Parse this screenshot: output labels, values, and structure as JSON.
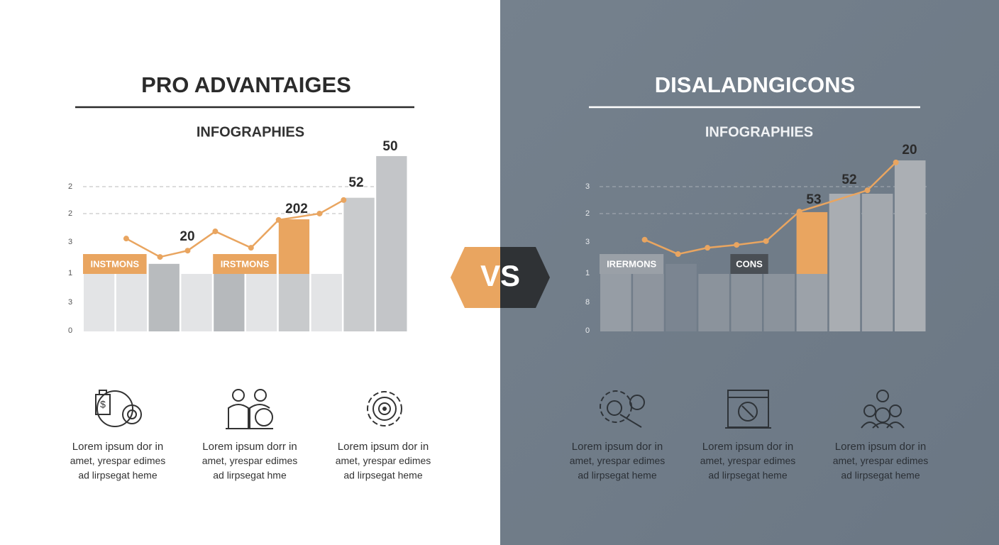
{
  "panels": [
    {
      "title": "PRO ADVANTAIGES",
      "subtitle": "INFOGRAPHIES",
      "axis_labels": [
        "2",
        "2",
        "3",
        "1",
        "3",
        "0"
      ],
      "bars": [
        {
          "value": 2.0,
          "color": "#e3e4e6"
        },
        {
          "value": 2.0,
          "color": "#e3e4e6"
        },
        {
          "value": 2.35,
          "color": "#b8bbbe"
        },
        {
          "value": 2.0,
          "color": "#e3e4e6"
        },
        {
          "value": 2.0,
          "color": "#b6b9bc"
        },
        {
          "value": 2.0,
          "color": "#e3e4e6"
        },
        {
          "value": 2.0,
          "color": "#c8cacc",
          "highlight": 1.9,
          "highlight_color": "#e9a560"
        },
        {
          "value": 2.0,
          "color": "#e3e4e6"
        },
        {
          "value": 4.65,
          "color": "#c9cbcd"
        },
        {
          "value": 6.1,
          "color": "#c3c5c8"
        }
      ],
      "line": {
        "color": "#e9a560",
        "x": [
          1.33,
          2.37,
          3.22,
          4.07,
          5.17,
          6.02,
          7.28,
          8.02
        ],
        "values": [
          3.23,
          2.59,
          2.81,
          3.48,
          2.91,
          3.88,
          4.1,
          4.57
        ]
      },
      "tags": [
        "INSTMONS",
        "IRSTMONS"
      ],
      "callouts": [
        "20",
        "202",
        "52",
        "50"
      ],
      "items": [
        [
          "Lorem ipsum dor in",
          "amet, yrespar edimes",
          "ad lirpsegat heme"
        ],
        [
          "Lorem ipsum dorr in",
          "amet, yrespar edimes",
          "ad lirpsegat hme"
        ],
        [
          "Lorem ipsum dor in",
          "amet, yrespar edimes",
          "ad lirpsegat heme"
        ]
      ]
    },
    {
      "title": "DISALADNGICONS",
      "subtitle": "INFOGRAPHIES",
      "axis_labels": [
        "3",
        "2",
        "3",
        "1",
        "8",
        "0"
      ],
      "bars": [
        {
          "value": 2.0,
          "color": "#969da5"
        },
        {
          "value": 2.0,
          "color": "#8e959e"
        },
        {
          "value": 2.35,
          "color": "#7b8591"
        },
        {
          "value": 2.0,
          "color": "#8b939c"
        },
        {
          "value": 2.0,
          "color": "#8b939c"
        },
        {
          "value": 2.0,
          "color": "#8b939c"
        },
        {
          "value": 2.0,
          "color": "#9ca2a9",
          "highlight": 2.15,
          "highlight_color": "#e9a560"
        },
        {
          "value": 4.79,
          "color": "#a9adb2"
        },
        {
          "value": 4.79,
          "color": "#a3a8ae"
        },
        {
          "value": 5.95,
          "color": "#abafb4"
        }
      ],
      "line": {
        "color": "#e9a560",
        "x": [
          1.38,
          2.4,
          3.3,
          4.19,
          5.09,
          6.11,
          8.19,
          9.06
        ],
        "values": [
          3.19,
          2.69,
          2.91,
          3.01,
          3.14,
          4.17,
          4.91,
          5.88
        ]
      },
      "tags": [
        "IRERMONS",
        "CONS"
      ],
      "callouts": [
        "53",
        "52",
        "20"
      ],
      "items": [
        [
          "Lorem ipsum dor in",
          "amet, yrespar edimes",
          "ad lirpsegat heme"
        ],
        [
          "Lorem ipsum dor in",
          "amet, yrespar edimes",
          "ad lirpsegat heme"
        ],
        [
          "Lorem ipsum dor in",
          "amet, yrespar edimes",
          "ad lirpsegat heme"
        ]
      ]
    }
  ],
  "vs": "VS"
}
